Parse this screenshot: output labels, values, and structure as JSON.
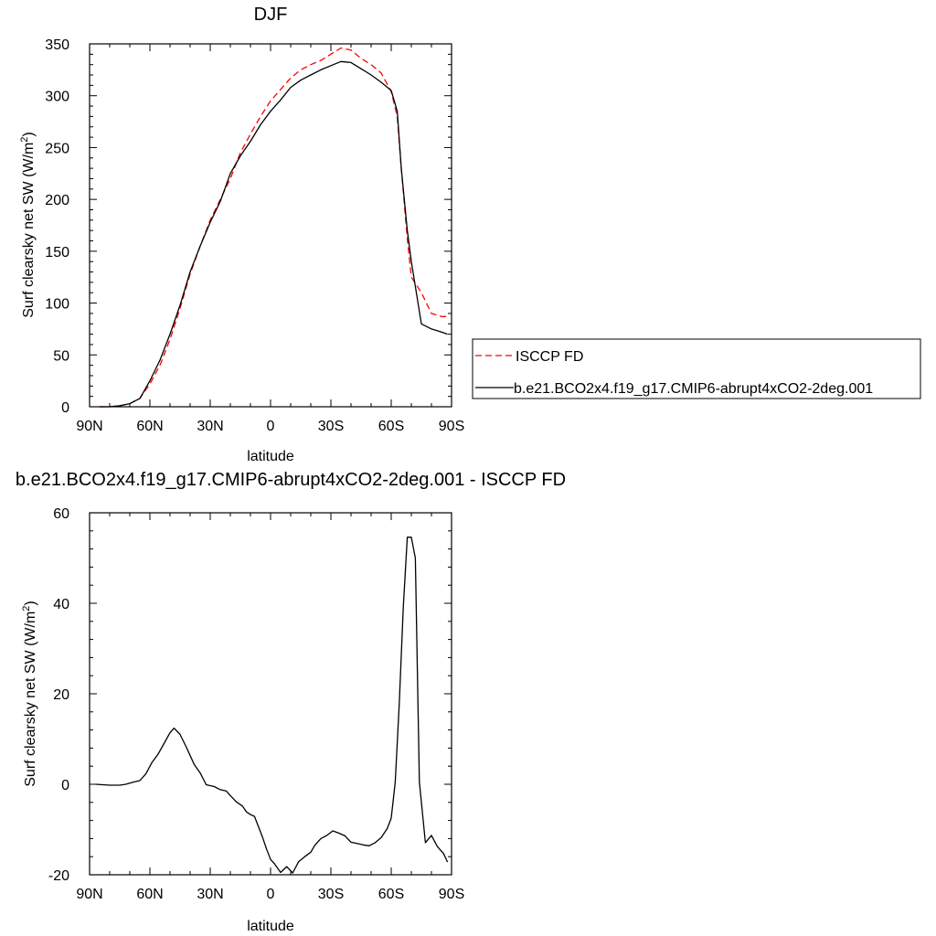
{
  "chart_data": [
    {
      "type": "line",
      "title": "DJF",
      "xlabel": "latitude",
      "ylabel": "Surf clearsky net SW (W/m",
      "ylabel_sup": "2",
      "ylabel_end": ")",
      "xlim": [
        90,
        -90
      ],
      "ylim": [
        0,
        350
      ],
      "xticks": [
        90,
        60,
        30,
        0,
        -30,
        -60,
        -90
      ],
      "xtick_labels": [
        "90N",
        "60N",
        "30N",
        "0",
        "30S",
        "60S",
        "90S"
      ],
      "yticks": [
        0,
        50,
        100,
        150,
        200,
        250,
        300,
        350
      ],
      "ytick_labels": [
        "0",
        "50",
        "100",
        "150",
        "200",
        "250",
        "300",
        "350"
      ],
      "legend_position": "right",
      "series": [
        {
          "name": "ISCCP FD",
          "color": "#ff0000",
          "dash": true,
          "x": [
            85,
            80,
            75,
            70,
            65,
            60,
            55,
            50,
            45,
            40,
            35,
            30,
            25,
            20,
            15,
            10,
            5,
            0,
            -5,
            -10,
            -15,
            -20,
            -25,
            -30,
            -35,
            -40,
            -45,
            -50,
            -55,
            -60,
            -63,
            -65,
            -68,
            -70,
            -75,
            -80,
            -85,
            -88
          ],
          "y": [
            0,
            0,
            1,
            3,
            8,
            22,
            40,
            65,
            95,
            128,
            155,
            180,
            200,
            220,
            245,
            263,
            280,
            295,
            306,
            317,
            325,
            330,
            334,
            340,
            346,
            344,
            336,
            330,
            322,
            304,
            280,
            230,
            162,
            125,
            110,
            90,
            87,
            87
          ]
        },
        {
          "name": "b.e21.BCO2x4.f19_g17.CMIP6-abrupt4xCO2-2deg.001",
          "color": "#000000",
          "dash": false,
          "x": [
            85,
            80,
            75,
            70,
            65,
            60,
            55,
            50,
            45,
            40,
            35,
            30,
            25,
            20,
            15,
            10,
            5,
            0,
            -5,
            -10,
            -15,
            -20,
            -25,
            -30,
            -35,
            -40,
            -45,
            -50,
            -55,
            -60,
            -63,
            -65,
            -68,
            -70,
            -75,
            -80,
            -85,
            -88
          ],
          "y": [
            0,
            0,
            1,
            3,
            8,
            25,
            45,
            70,
            98,
            130,
            155,
            178,
            198,
            225,
            242,
            256,
            272,
            285,
            296,
            308,
            315,
            320,
            325,
            329,
            333,
            332,
            326,
            320,
            313,
            305,
            285,
            230,
            170,
            140,
            80,
            75,
            72,
            70
          ]
        }
      ]
    },
    {
      "type": "line",
      "title": "b.e21.BCO2x4.f19_g17.CMIP6-abrupt4xCO2-2deg.001 - ISCCP FD",
      "xlabel": "latitude",
      "ylabel": "Surf clearsky net SW (W/m",
      "ylabel_sup": "2",
      "ylabel_end": ")",
      "xlim": [
        90,
        -90
      ],
      "ylim": [
        -20,
        60
      ],
      "xticks": [
        90,
        60,
        30,
        0,
        -30,
        -60,
        -90
      ],
      "xtick_labels": [
        "90N",
        "60N",
        "30N",
        "0",
        "30S",
        "60S",
        "90S"
      ],
      "yticks": [
        -20,
        0,
        20,
        40,
        60
      ],
      "ytick_labels": [
        "-20",
        "0",
        "20",
        "40",
        "60"
      ],
      "series": [
        {
          "color": "#000000",
          "dash": false,
          "x": [
            87,
            80,
            75,
            72,
            68,
            65,
            62,
            59,
            56,
            53,
            50,
            48,
            45,
            42,
            38,
            35,
            32,
            28,
            25,
            22,
            20,
            17,
            14,
            12,
            10,
            8,
            6,
            4,
            2,
            0,
            -2,
            -5,
            -8,
            -11,
            -14,
            -17,
            -20,
            -22,
            -25,
            -28,
            -31,
            -34,
            -37,
            -40,
            -43,
            -46,
            -49,
            -52,
            -55,
            -58,
            -60,
            -62,
            -64,
            -66,
            -68,
            -70,
            -72,
            -74,
            -77,
            -80,
            -83,
            -86,
            -88
          ],
          "y": [
            0,
            -0.2,
            -0.2,
            0,
            0.5,
            0.8,
            2.3,
            4.8,
            6.6,
            9,
            11.4,
            12.4,
            11,
            8.3,
            4.4,
            2.5,
            -0.1,
            -0.5,
            -1.2,
            -1.5,
            -2.5,
            -3.9,
            -4.8,
            -6.1,
            -6.7,
            -7.1,
            -9.4,
            -11.7,
            -14.3,
            -16.6,
            -17.6,
            -19.5,
            -18.2,
            -19.6,
            -17.1,
            -16,
            -15,
            -13.5,
            -12,
            -11.3,
            -10.3,
            -10.8,
            -11.4,
            -12.8,
            -13.1,
            -13.4,
            -13.6,
            -12.9,
            -11.8,
            -9.8,
            -7.5,
            0.5,
            17.8,
            39.1,
            54.6,
            54.6,
            50,
            0.5,
            -12.9,
            -11.3,
            -13.8,
            -15.3,
            -17.2
          ]
        }
      ]
    }
  ]
}
